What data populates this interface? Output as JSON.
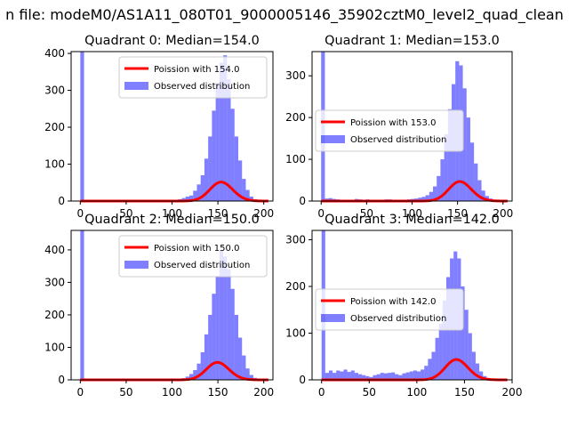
{
  "figure": {
    "suptitle": "n file: modeM0/AS1A11_080T01_9000005146_35902cztM0_level2_quad_clean",
    "colors": {
      "hist": "#0000ff",
      "hist_opacity": 0.5,
      "poisson_line": "#ff0000"
    }
  },
  "chart_data": [
    {
      "type": "bar",
      "title": "Quadrant 0: Median=154.0",
      "median": 154.0,
      "xlim": [
        -10,
        210
      ],
      "ylim": [
        0,
        405
      ],
      "xticks": [
        0,
        50,
        100,
        150,
        200
      ],
      "yticks": [
        0,
        100,
        200,
        300,
        400
      ],
      "legend_location": "upper right",
      "legend": [
        "Poission with 154.0",
        "Observed distribution"
      ],
      "hist": {
        "start": 0,
        "bin_width": 4.1,
        "values": [
          405,
          0,
          0,
          0,
          0,
          0,
          0,
          0,
          0,
          0,
          0,
          0,
          0,
          0,
          0,
          0,
          0,
          0,
          0,
          0,
          0,
          0,
          0,
          0,
          0,
          2,
          5,
          8,
          12,
          15,
          28,
          45,
          70,
          115,
          175,
          245,
          320,
          375,
          395,
          330,
          250,
          175,
          110,
          60,
          30,
          12,
          5,
          2,
          1,
          0
        ]
      },
      "poisson": {
        "lambda": 154.0,
        "scale": 1600
      }
    },
    {
      "type": "bar",
      "title": "Quadrant 1: Median=153.0",
      "median": 153.0,
      "xlim": [
        -10,
        210
      ],
      "ylim": [
        0,
        358
      ],
      "xticks": [
        0,
        50,
        100,
        150,
        200
      ],
      "yticks": [
        0,
        100,
        200,
        300
      ],
      "legend_location": "center left",
      "legend": [
        "Poission with 153.0",
        "Observed distribution"
      ],
      "hist": {
        "start": 0,
        "bin_width": 4.1,
        "values": [
          358,
          6,
          7,
          5,
          4,
          3,
          3,
          2,
          3,
          5,
          4,
          3,
          4,
          3,
          3,
          3,
          3,
          4,
          4,
          3,
          3,
          3,
          3,
          4,
          5,
          6,
          8,
          10,
          14,
          22,
          35,
          60,
          100,
          160,
          220,
          280,
          335,
          325,
          270,
          200,
          140,
          90,
          50,
          25,
          12,
          6,
          3,
          2,
          1,
          0
        ]
      },
      "poisson": {
        "lambda": 153.0,
        "scale": 1450
      }
    },
    {
      "type": "bar",
      "title": "Quadrant 2: Median=150.0",
      "median": 150.0,
      "xlim": [
        -10,
        210
      ],
      "ylim": [
        0,
        460
      ],
      "xticks": [
        0,
        50,
        100,
        150,
        200
      ],
      "yticks": [
        0,
        100,
        200,
        300,
        400
      ],
      "legend_location": "upper right",
      "legend": [
        "Poission with 150.0",
        "Observed distribution"
      ],
      "hist": {
        "start": 0,
        "bin_width": 4.1,
        "values": [
          460,
          0,
          0,
          0,
          0,
          0,
          0,
          0,
          0,
          0,
          0,
          0,
          0,
          0,
          0,
          0,
          0,
          0,
          0,
          0,
          0,
          0,
          0,
          0,
          0,
          1,
          3,
          5,
          10,
          18,
          30,
          50,
          85,
          140,
          200,
          265,
          320,
          400,
          380,
          340,
          280,
          200,
          130,
          75,
          35,
          15,
          6,
          2,
          1,
          0
        ]
      },
      "poisson": {
        "lambda": 150.0,
        "scale": 1650
      }
    },
    {
      "type": "bar",
      "title": "Quadrant 3: Median=142.0",
      "median": 142.0,
      "xlim": [
        -10,
        200
      ],
      "ylim": [
        0,
        320
      ],
      "xticks": [
        0,
        50,
        100,
        150,
        200
      ],
      "yticks": [
        0,
        100,
        200,
        300
      ],
      "legend_location": "center left",
      "legend": [
        "Poission with 142.0",
        "Observed distribution"
      ],
      "hist": {
        "start": 0,
        "bin_width": 3.85,
        "values": [
          320,
          15,
          20,
          15,
          20,
          18,
          22,
          17,
          20,
          15,
          12,
          10,
          8,
          6,
          10,
          12,
          15,
          14,
          15,
          16,
          12,
          10,
          14,
          16,
          18,
          20,
          18,
          22,
          30,
          45,
          60,
          90,
          120,
          170,
          220,
          260,
          275,
          260,
          200,
          150,
          100,
          60,
          35,
          18,
          8,
          4,
          2,
          1,
          0,
          0
        ]
      },
      "poisson": {
        "lambda": 142.0,
        "scale": 1300
      }
    }
  ]
}
